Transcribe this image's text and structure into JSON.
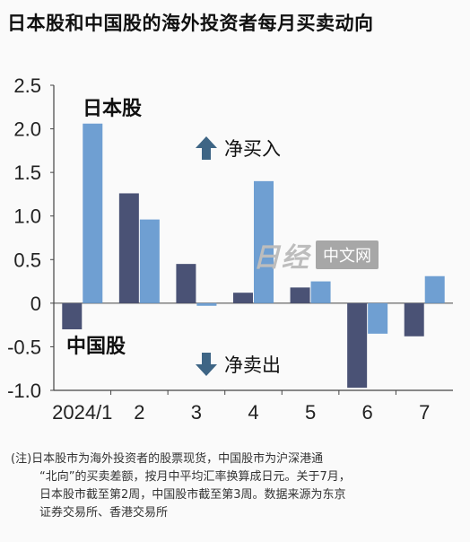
{
  "title": "日本股和中国股的海外投资者每月买卖动向",
  "chart_data": {
    "type": "bar",
    "categories": [
      "2024/1",
      "2",
      "3",
      "4",
      "5",
      "6",
      "7"
    ],
    "series": [
      {
        "name": "中国股",
        "values": [
          -0.3,
          1.26,
          0.45,
          0.12,
          0.18,
          -0.97,
          -0.38
        ],
        "color": "#4a5275"
      },
      {
        "name": "日本股",
        "values": [
          2.06,
          0.96,
          -0.03,
          1.4,
          0.25,
          -0.35,
          0.31
        ],
        "color": "#6f9fd2"
      }
    ],
    "yticks": [
      "2.5",
      "2.0",
      "1.5",
      "1.0",
      "0.5",
      "0",
      "-0.5",
      "-1.0"
    ],
    "ylim": [
      -1.0,
      2.5
    ],
    "annotations": {
      "buy": "净买入",
      "sell": "净卖出"
    },
    "arrow_color": "#3e6585"
  },
  "note": {
    "line1": "(注)日本股市为海外投资者的股票现货，中国股市为沪深港通",
    "line2": "“北向”的买卖差额，按月中平均汇率换算成日元。关于7月，",
    "line3": "日本股市截至第2周，中国股市截至第3周。数据来源为东京",
    "line4": "证券交易所、香港交易所"
  },
  "watermark": {
    "logo": "日经",
    "text": "中文网"
  }
}
